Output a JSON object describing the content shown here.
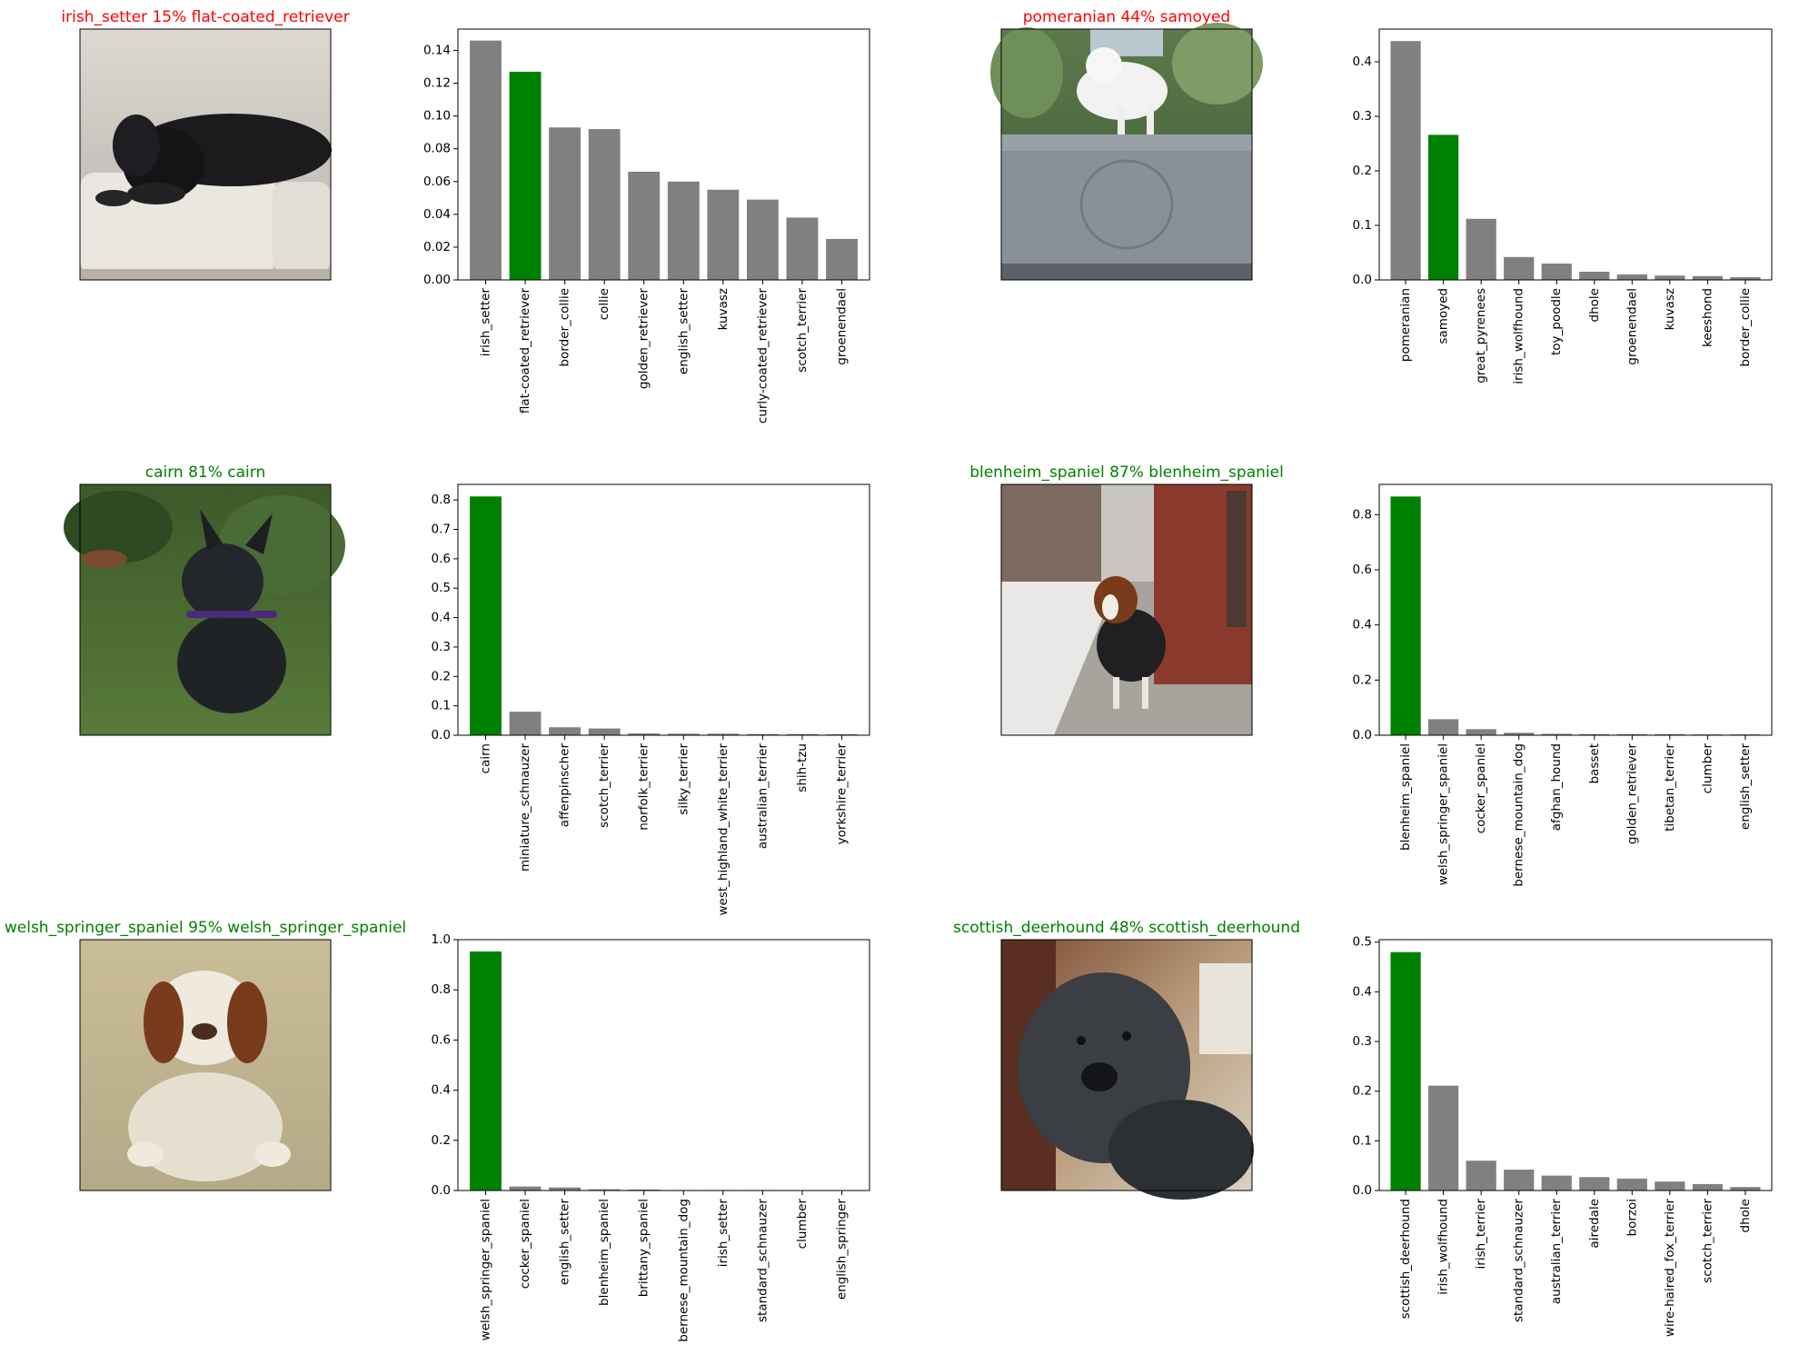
{
  "colors": {
    "correct": "#008000",
    "wrong": "#ff0000",
    "bar_default": "#808080",
    "bar_true": "#008000"
  },
  "rows": [
    {
      "left": {
        "title": "irish_setter 15% flat-coated_retriever",
        "title_color": "#ff0000",
        "image": "black-dog-lying-on-white-sofa"
      },
      "right": {
        "title": "pomeranian 44% samoyed",
        "title_color": "#ff0000",
        "image": "white-fluffy-dog-standing-on-stone-monument"
      }
    },
    {
      "left": {
        "title": "cairn 81% cairn",
        "title_color": "#008000",
        "image": "dark-scruffy-terrier-sitting-on-grass"
      },
      "right": {
        "title": "blenheim_spaniel 87% blenheim_spaniel",
        "title_color": "#008000",
        "image": "spaniel-in-black-coat-on-snowy-sidewalk"
      }
    },
    {
      "left": {
        "title": "welsh_springer_spaniel 95% welsh_springer_spaniel",
        "title_color": "#008000",
        "image": "wet-spaniel-sitting-on-sand"
      },
      "right": {
        "title": "scottish_deerhound 48% scottish_deerhound",
        "title_color": "#008000",
        "image": "grey-wiry-dog-close-up-portrait"
      }
    }
  ],
  "chart_data": [
    {
      "type": "bar",
      "categories": [
        "irish_setter",
        "flat-coated_retriever",
        "border_collie",
        "collie",
        "golden_retriever",
        "english_setter",
        "kuvasz",
        "curly-coated_retriever",
        "scotch_terrier",
        "groenendael"
      ],
      "values": [
        0.146,
        0.127,
        0.093,
        0.092,
        0.066,
        0.06,
        0.055,
        0.049,
        0.038,
        0.025
      ],
      "highlight_index": 1,
      "ylim": [
        0,
        0.153
      ],
      "yticks": [
        0,
        0.02,
        0.04,
        0.06,
        0.08,
        0.1,
        0.12,
        0.14
      ],
      "ytick_labels": [
        "0.00",
        "0.02",
        "0.04",
        "0.06",
        "0.08",
        "0.10",
        "0.12",
        "0.14"
      ]
    },
    {
      "type": "bar",
      "categories": [
        "pomeranian",
        "samoyed",
        "great_pyrenees",
        "irish_wolfhound",
        "toy_poodle",
        "dhole",
        "groenendael",
        "kuvasz",
        "keeshond",
        "border_collie"
      ],
      "values": [
        0.438,
        0.266,
        0.112,
        0.042,
        0.03,
        0.015,
        0.01,
        0.008,
        0.007,
        0.005
      ],
      "highlight_index": 1,
      "ylim": [
        0,
        0.46
      ],
      "yticks": [
        0,
        0.1,
        0.2,
        0.3,
        0.4
      ],
      "ytick_labels": [
        "0.0",
        "0.1",
        "0.2",
        "0.3",
        "0.4"
      ]
    },
    {
      "type": "bar",
      "categories": [
        "cairn",
        "miniature_schnauzer",
        "affenpinscher",
        "scotch_terrier",
        "norfolk_terrier",
        "silky_terrier",
        "west_highland_white_terrier",
        "australian_terrier",
        "shih-tzu",
        "yorkshire_terrier"
      ],
      "values": [
        0.812,
        0.08,
        0.027,
        0.023,
        0.006,
        0.005,
        0.005,
        0.004,
        0.004,
        0.003
      ],
      "highlight_index": 0,
      "ylim": [
        0,
        0.853
      ],
      "yticks": [
        0,
        0.1,
        0.2,
        0.3,
        0.4,
        0.5,
        0.6,
        0.7,
        0.8
      ],
      "ytick_labels": [
        "0.0",
        "0.1",
        "0.2",
        "0.3",
        "0.4",
        "0.5",
        "0.6",
        "0.7",
        "0.8"
      ]
    },
    {
      "type": "bar",
      "categories": [
        "blenheim_spaniel",
        "welsh_springer_spaniel",
        "cocker_spaniel",
        "bernese_mountain_dog",
        "afghan_hound",
        "basset",
        "golden_retriever",
        "tibetan_terrier",
        "clumber",
        "english_setter"
      ],
      "values": [
        0.866,
        0.058,
        0.022,
        0.009,
        0.005,
        0.004,
        0.004,
        0.004,
        0.003,
        0.003
      ],
      "highlight_index": 0,
      "ylim": [
        0,
        0.91
      ],
      "yticks": [
        0,
        0.2,
        0.4,
        0.6,
        0.8
      ],
      "ytick_labels": [
        "0.0",
        "0.2",
        "0.4",
        "0.6",
        "0.8"
      ]
    },
    {
      "type": "bar",
      "categories": [
        "welsh_springer_spaniel",
        "cocker_spaniel",
        "english_setter",
        "blenheim_spaniel",
        "brittany_spaniel",
        "bernese_mountain_dog",
        "irish_setter",
        "standard_schnauzer",
        "clumber",
        "english_springer"
      ],
      "values": [
        0.953,
        0.016,
        0.012,
        0.005,
        0.004,
        0.002,
        0.002,
        0.002,
        0.001,
        0.001
      ],
      "highlight_index": 0,
      "ylim": [
        0,
        1.0
      ],
      "yticks": [
        0,
        0.2,
        0.4,
        0.6,
        0.8,
        1.0
      ],
      "ytick_labels": [
        "0.0",
        "0.2",
        "0.4",
        "0.6",
        "0.8",
        "1.0"
      ]
    },
    {
      "type": "bar",
      "categories": [
        "scottish_deerhound",
        "irish_wolfhound",
        "irish_terrier",
        "standard_schnauzer",
        "australian_terrier",
        "airedale",
        "borzoi",
        "wire-haired_fox_terrier",
        "scotch_terrier",
        "dhole"
      ],
      "values": [
        0.48,
        0.211,
        0.06,
        0.042,
        0.03,
        0.027,
        0.024,
        0.018,
        0.013,
        0.007
      ],
      "highlight_index": 0,
      "ylim": [
        0,
        0.505
      ],
      "yticks": [
        0,
        0.1,
        0.2,
        0.3,
        0.4,
        0.5
      ],
      "ytick_labels": [
        "0.0",
        "0.1",
        "0.2",
        "0.3",
        "0.4",
        "0.5"
      ]
    }
  ]
}
